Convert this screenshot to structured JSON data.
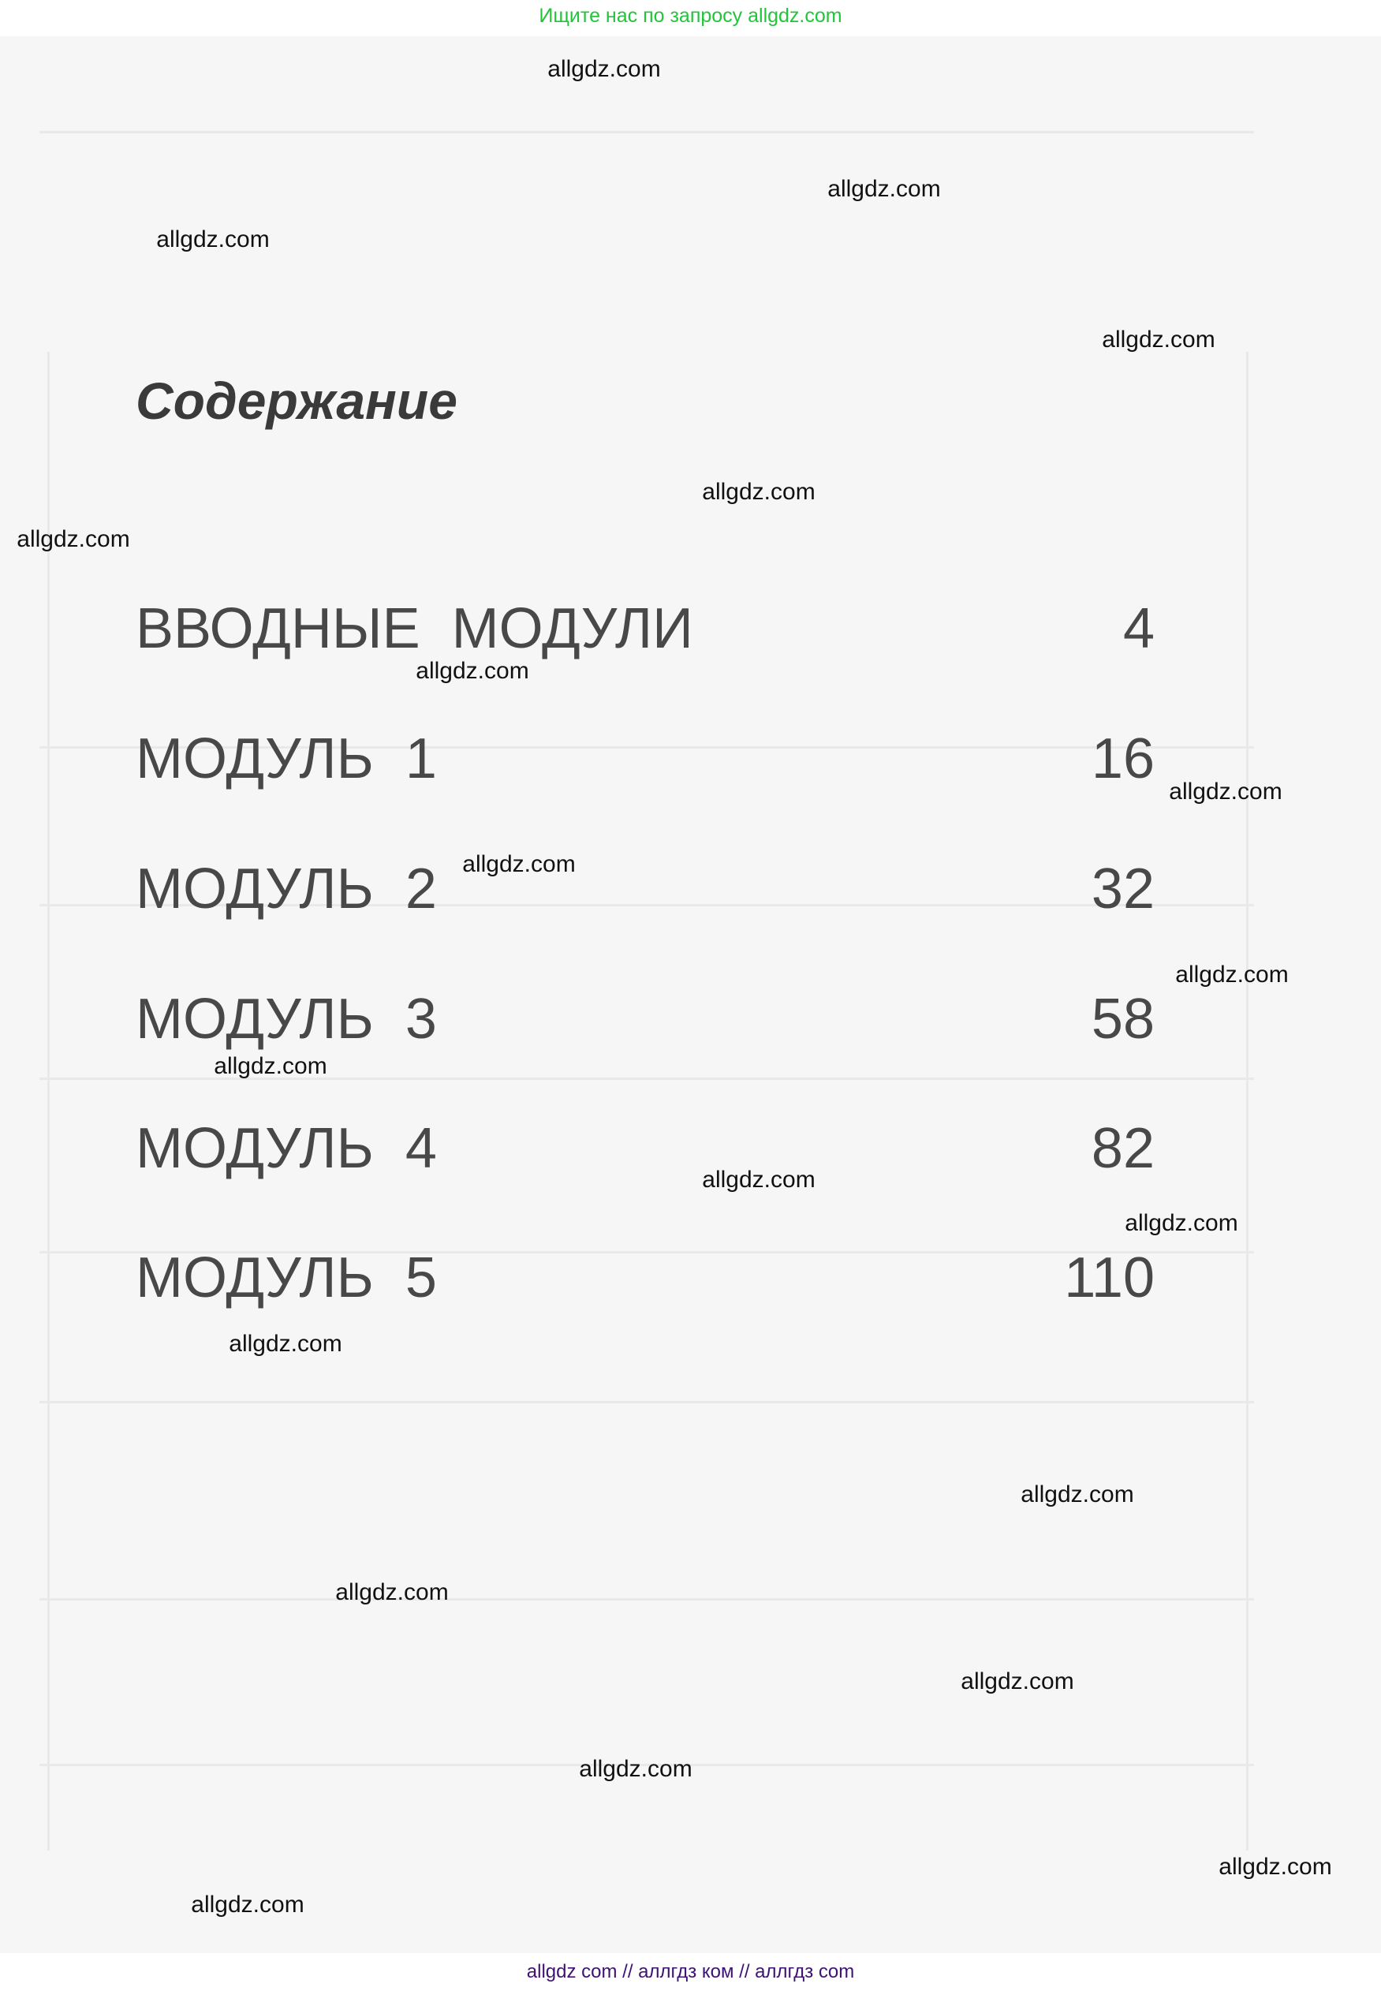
{
  "top_banner": "Ищите нас по запросу allgdz.com",
  "title": "Содержание",
  "toc": [
    {
      "label": "ВВОДНЫЕ МОДУЛИ",
      "page": "4"
    },
    {
      "label": "МОДУЛЬ 1",
      "page": "16"
    },
    {
      "label": "МОДУЛЬ 2",
      "page": "32"
    },
    {
      "label": "МОДУЛЬ 3",
      "page": "58"
    },
    {
      "label": "МОДУЛЬ 4",
      "page": "82"
    },
    {
      "label": "МОДУЛЬ 5",
      "page": "110"
    }
  ],
  "watermark": "allgdz.com",
  "footer": "allgdz com  //  аллгдз ком  //  аллгдз com",
  "colors": {
    "banner": "#22c43a",
    "footer": "#3f1275"
  }
}
